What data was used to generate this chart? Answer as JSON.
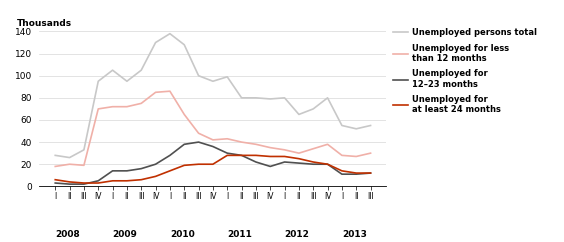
{
  "total": [
    28,
    26,
    33,
    95,
    105,
    95,
    105,
    130,
    138,
    128,
    100,
    95,
    99,
    80,
    80,
    79,
    80,
    65,
    70,
    80,
    55,
    52,
    55
  ],
  "less_12": [
    18,
    20,
    19,
    70,
    72,
    72,
    75,
    85,
    86,
    65,
    48,
    42,
    43,
    40,
    38,
    35,
    33,
    30,
    34,
    38,
    28,
    27,
    30
  ],
  "months_12_23": [
    3,
    2,
    2,
    5,
    14,
    14,
    16,
    20,
    28,
    38,
    40,
    36,
    30,
    28,
    22,
    18,
    22,
    21,
    20,
    20,
    11,
    11,
    12
  ],
  "at_least_24": [
    6,
    4,
    3,
    3,
    5,
    5,
    6,
    9,
    14,
    19,
    20,
    20,
    28,
    28,
    28,
    27,
    27,
    25,
    22,
    20,
    14,
    12,
    12
  ],
  "color_total": "#c8c8c8",
  "color_less_12": "#f0b0a8",
  "color_12_23": "#505050",
  "color_at_least_24": "#c03000",
  "ylim": [
    0,
    140
  ],
  "yticks": [
    0,
    20,
    40,
    60,
    80,
    100,
    120,
    140
  ],
  "ylabel": "Thousands",
  "quarter_labels": [
    "I",
    "II",
    "III",
    "IV",
    "I",
    "II",
    "III",
    "IV",
    "I",
    "II",
    "III",
    "IV",
    "I",
    "II",
    "III",
    "IV",
    "I",
    "II",
    "III",
    "IV",
    "I",
    "II",
    "III"
  ],
  "year_labels": [
    "2008",
    "2009",
    "2010",
    "2011",
    "2012",
    "2013"
  ],
  "year_tick_positions": [
    0,
    4,
    8,
    12,
    16,
    20
  ],
  "legend_total": "Unemployed persons total",
  "legend_less_12": "Unemployed for less\nthan 12 months",
  "legend_12_23": "Unemployed for\n12–23 months",
  "legend_at_least_24": "Unemployed for\nat least 24 months"
}
